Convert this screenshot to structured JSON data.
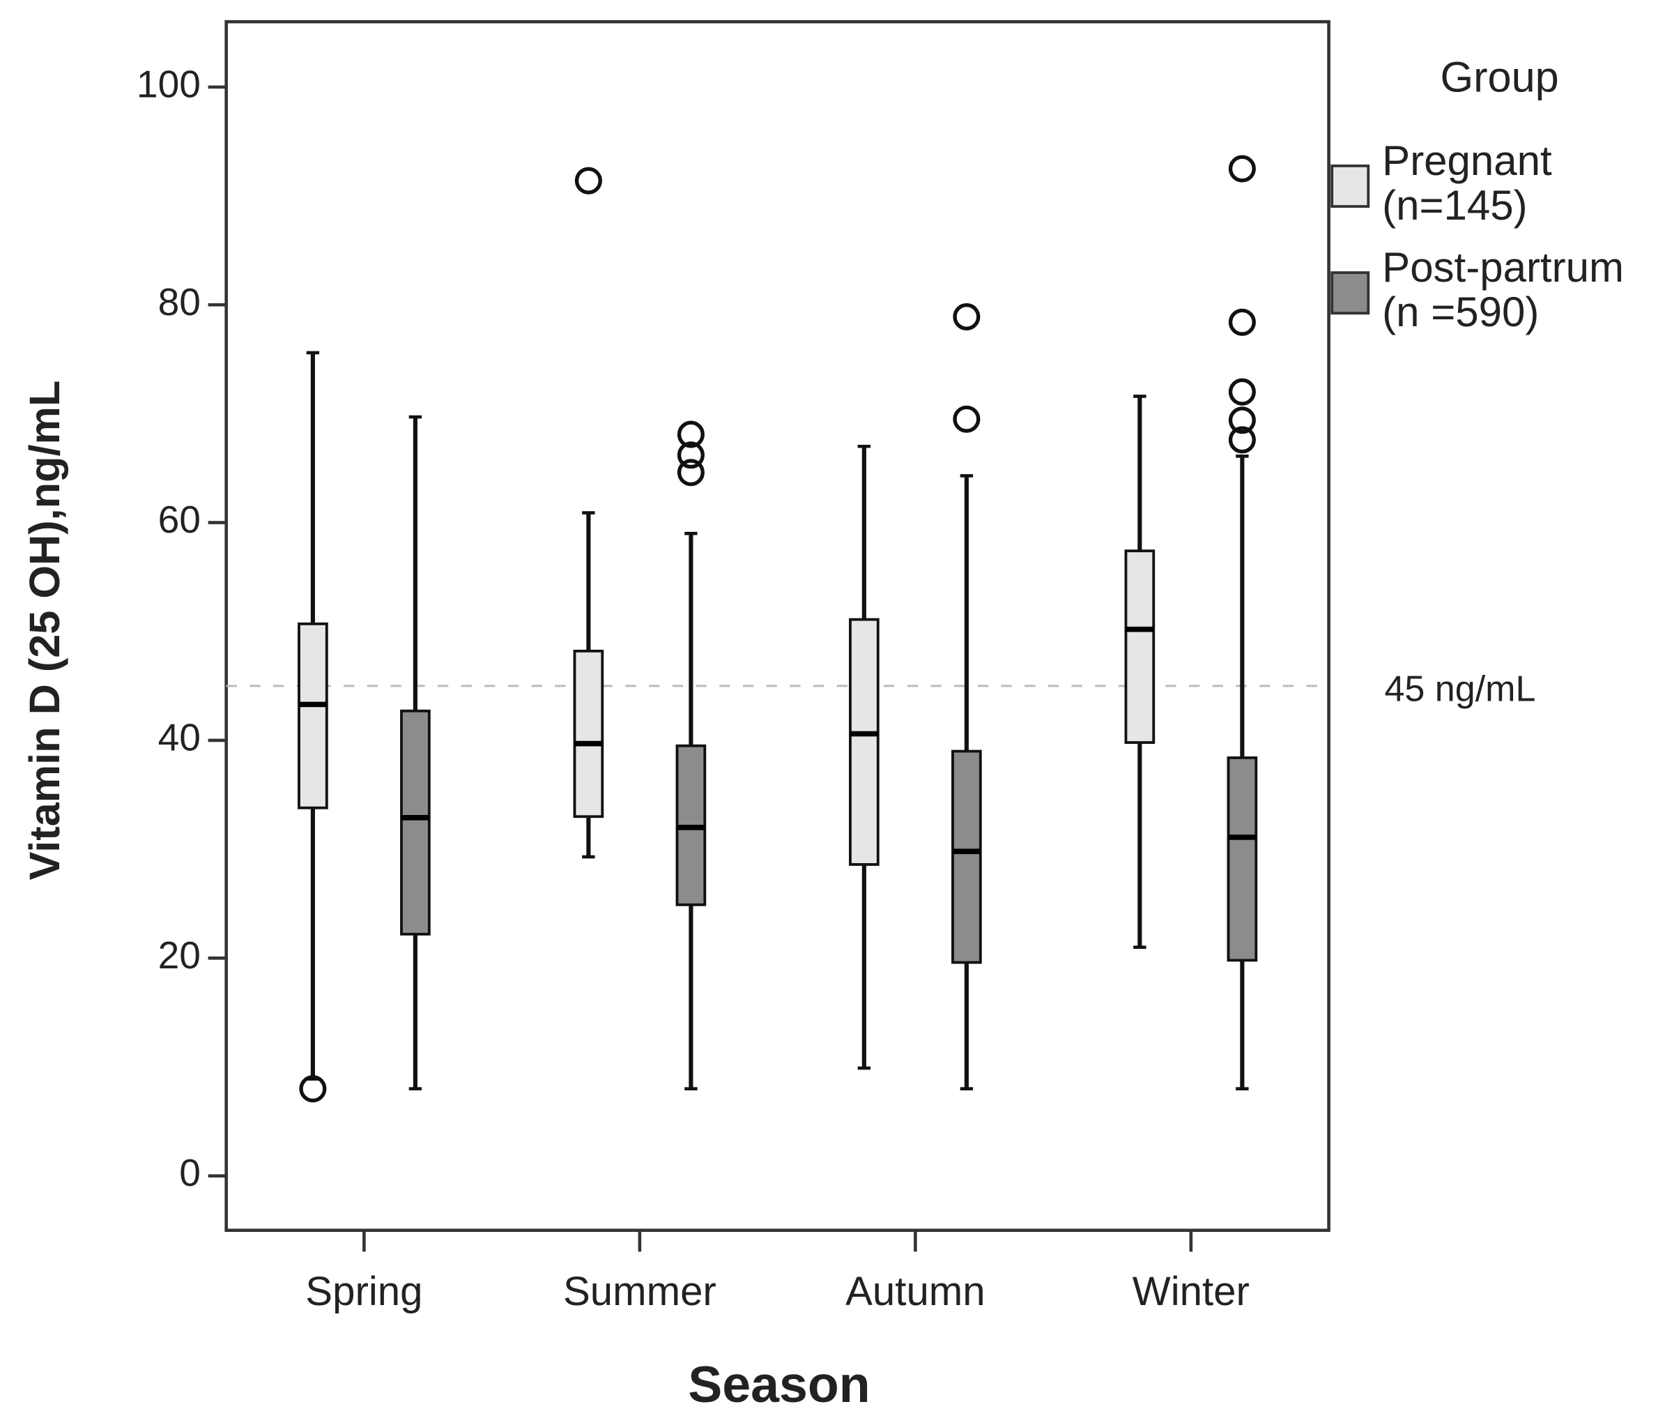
{
  "chart_data": {
    "type": "box",
    "y_label": "Vitamin D (25 OH),ng/mL",
    "x_label": "Season",
    "categories": [
      "Spring",
      "Summer",
      "Autumn",
      "Winter"
    ],
    "ylim": [
      -5,
      106
    ],
    "yticks": [
      0,
      20,
      40,
      60,
      80,
      100
    ],
    "legend_title": "Group",
    "reference_line": {
      "value": 45,
      "label": "45 ng/mL"
    },
    "series": [
      {
        "name": "Pregnant (n=145)",
        "color": "#e6e6e6",
        "whisker_low": [
          8.9,
          29.3,
          9.9,
          21.0
        ],
        "q1": [
          33.8,
          33.0,
          28.6,
          39.8
        ],
        "median": [
          43.3,
          39.7,
          40.6,
          50.2
        ],
        "q3": [
          50.7,
          48.2,
          51.1,
          57.4
        ],
        "whisker_high": [
          75.6,
          60.9,
          67.0,
          71.6
        ],
        "outliers": [
          [
            8.0
          ],
          [
            91.4
          ],
          [],
          []
        ]
      },
      {
        "name": "Post-partrum (n =590)",
        "color": "#8c8c8c",
        "whisker_low": [
          8.0,
          8.0,
          8.0,
          8.0
        ],
        "q1": [
          22.2,
          24.9,
          19.6,
          19.8
        ],
        "median": [
          32.9,
          32.0,
          29.8,
          31.1
        ],
        "q3": [
          42.7,
          39.5,
          39.0,
          38.4
        ],
        "whisker_high": [
          69.7,
          59.0,
          64.3,
          66.1
        ],
        "outliers": [
          [],
          [
            68.1,
            66.2,
            64.6
          ],
          [
            78.9,
            69.5
          ],
          [
            92.5,
            78.4,
            72.0,
            69.4,
            67.6
          ]
        ]
      }
    ]
  }
}
